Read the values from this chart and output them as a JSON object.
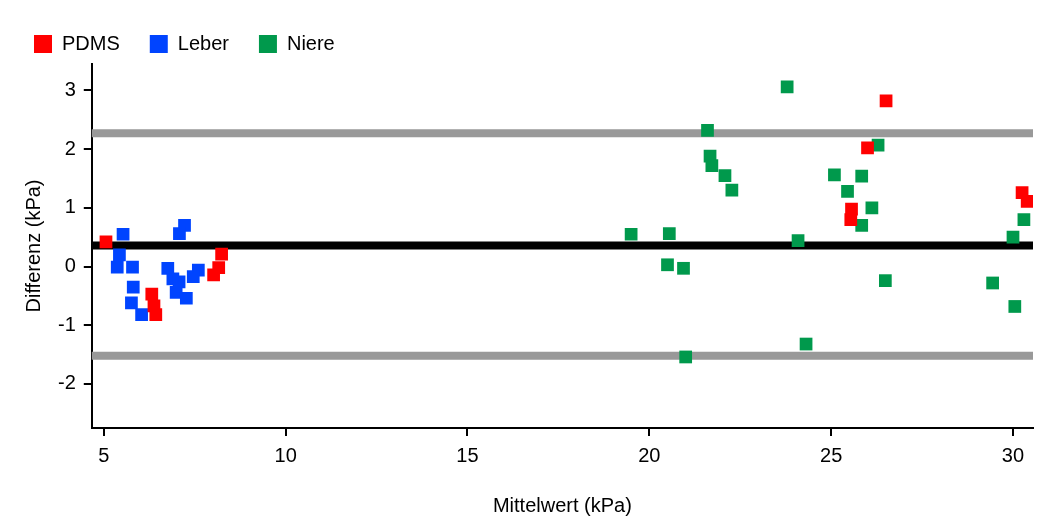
{
  "chart_data": {
    "type": "scatter",
    "xlabel": "Mittelwert (kPa)",
    "ylabel": "Differenz (kPa)",
    "xlim": [
      4.67,
      30.55
    ],
    "xticks": [
      5,
      10,
      15,
      20,
      25,
      30
    ],
    "ylim": [
      -2.75,
      3.45
    ],
    "yticks": [
      -2,
      -1,
      0,
      1,
      2,
      3
    ],
    "grid": false,
    "legend": "top left",
    "marker": "square",
    "ref_lines": [
      {
        "axis": "y",
        "value": 0.36,
        "color": "#000000"
      },
      {
        "axis": "y",
        "value": 2.27,
        "color": "#999999"
      },
      {
        "axis": "y",
        "value": -1.52,
        "color": "#999999"
      }
    ],
    "series": [
      {
        "name": "PDMS",
        "color": "#ff0000",
        "x": [
          5.06,
          8.24,
          8.16,
          8.02,
          6.32,
          6.43,
          6.38,
          26.51,
          26.0,
          25.56,
          25.54,
          30.25,
          30.39
        ],
        "values": [
          0.42,
          0.21,
          -0.02,
          -0.14,
          -0.47,
          -0.82,
          -0.67,
          2.82,
          2.02,
          0.98,
          0.8,
          1.26,
          1.11
        ]
      },
      {
        "name": "Leber",
        "color": "#0044ff",
        "x": [
          5.53,
          5.43,
          5.37,
          5.79,
          5.81,
          5.76,
          6.04,
          7.22,
          7.08,
          6.76,
          6.9,
          6.99,
          7.27,
          7.6,
          7.46,
          7.07
        ],
        "values": [
          0.55,
          0.2,
          -0.01,
          -0.01,
          -0.35,
          -0.62,
          -0.82,
          0.7,
          0.56,
          -0.03,
          -0.21,
          -0.44,
          -0.54,
          -0.06,
          -0.17,
          -0.26
        ]
      },
      {
        "name": "Niere",
        "color": "#00994c",
        "x": [
          23.79,
          21.6,
          21.67,
          21.72,
          22.08,
          22.27,
          19.5,
          20.55,
          24.09,
          20.5,
          20.94,
          21.0,
          24.31,
          26.29,
          25.09,
          25.84,
          25.45,
          26.12,
          25.84,
          26.49,
          29.44,
          30.05,
          30.0,
          30.3
        ],
        "values": [
          3.06,
          2.32,
          1.88,
          1.72,
          1.55,
          1.3,
          0.55,
          0.56,
          0.44,
          0.03,
          -0.03,
          -1.54,
          -1.32,
          2.07,
          1.56,
          1.54,
          1.28,
          1.0,
          0.7,
          -0.24,
          -0.28,
          -0.68,
          0.5,
          0.8
        ]
      }
    ]
  }
}
